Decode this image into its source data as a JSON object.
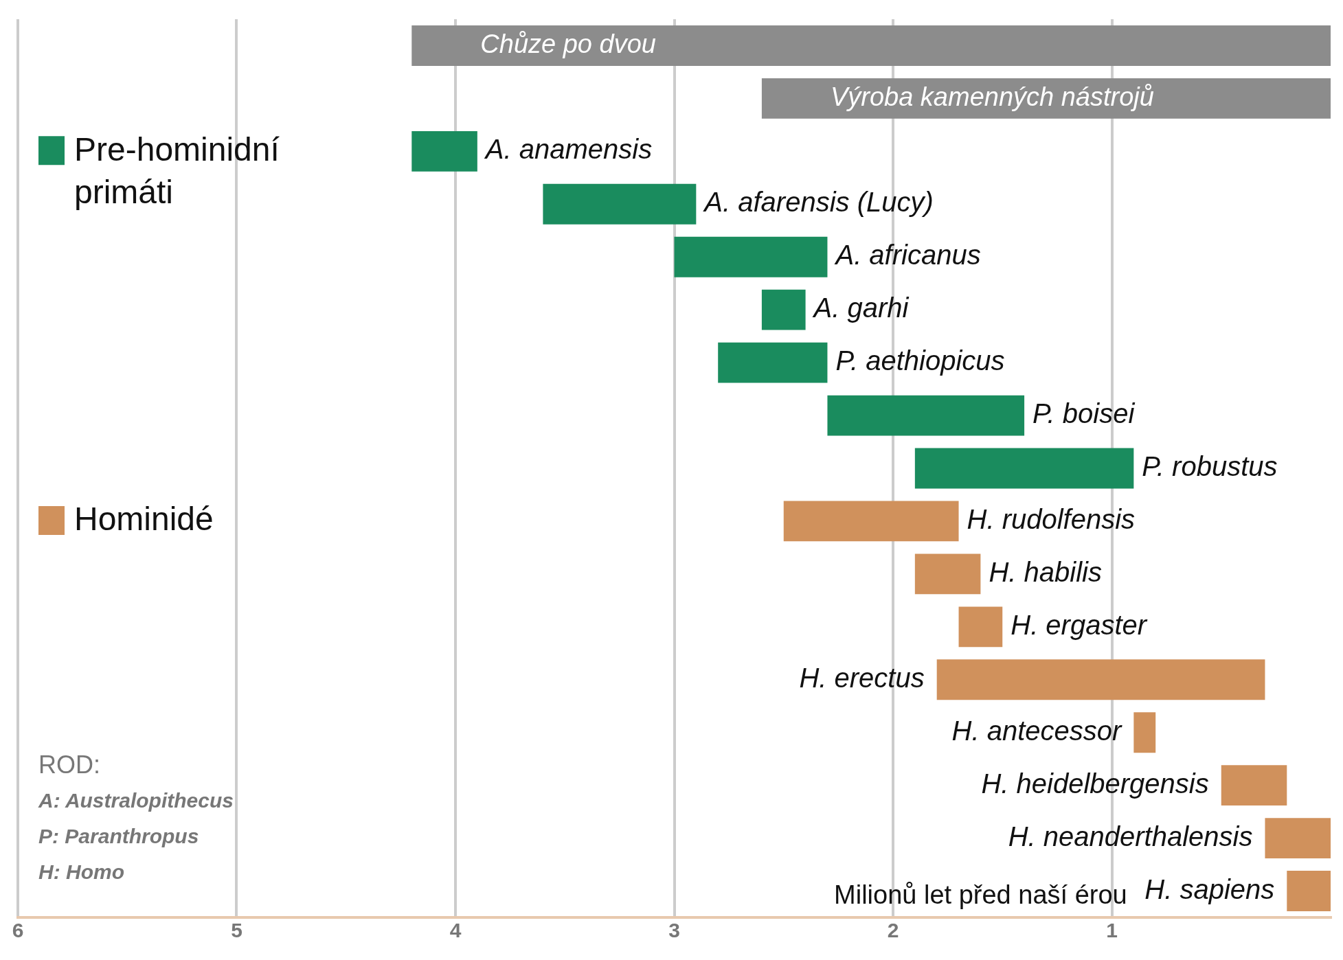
{
  "chart_data": {
    "type": "bar",
    "orientation": "horizontal",
    "categories": [
      "Chůze po dvou",
      "Výroba kamenných nástrojů",
      "A. anamensis",
      "A. afarensis (Lucy)",
      "A. africanus",
      "A. garhi",
      "P. aethiopicus",
      "P. boisei",
      "P. robustus",
      "H. rudolfensis",
      "H. habilis",
      "H. ergaster",
      "H. erectus",
      "H. antecessor",
      "H. heidelbergensis",
      "H. neanderthalensis",
      "H. sapiens"
    ],
    "series": [
      {
        "color": "#8c8c8c",
        "base": [
          0,
          0,
          null,
          null,
          null,
          null,
          null,
          null,
          null,
          null,
          null,
          null,
          null,
          null,
          null,
          null,
          null
        ],
        "values": [
          4.2,
          2.6,
          null,
          null,
          null,
          null,
          null,
          null,
          null,
          null,
          null,
          null,
          null,
          null,
          null,
          null,
          null
        ]
      },
      {
        "name": "Pre-hominidní primáti",
        "color": "#1a8c5e",
        "base": [
          null,
          null,
          3.9,
          2.9,
          2.3,
          2.4,
          2.3,
          1.4,
          0.9,
          null,
          null,
          null,
          null,
          null,
          null,
          null,
          null
        ],
        "values": [
          null,
          null,
          0.3,
          0.7,
          0.7,
          0.2,
          0.5,
          0.9,
          1.0,
          null,
          null,
          null,
          null,
          null,
          null,
          null,
          null
        ]
      },
      {
        "name": "Hominidé",
        "color": "#d0915c",
        "base": [
          null,
          null,
          null,
          null,
          null,
          null,
          null,
          null,
          null,
          1.7,
          1.6,
          1.5,
          0.3,
          0.8,
          0.2,
          0,
          0
        ],
        "values": [
          null,
          null,
          null,
          null,
          null,
          null,
          null,
          null,
          null,
          0.8,
          0.3,
          0.2,
          1.5,
          0.1,
          0.3,
          0.3,
          0.2
        ]
      }
    ],
    "xlim": [
      6,
      0
    ],
    "xticks": [
      6,
      5,
      4,
      3,
      2,
      1
    ],
    "xlabel": "Milionů let před naší érou",
    "grid": "x",
    "legend": "left",
    "tick_labels": "x",
    "annotations": [
      "ROD:",
      "A: Australopithecus",
      "P: Paranthropus",
      "H: Homo"
    ]
  }
}
